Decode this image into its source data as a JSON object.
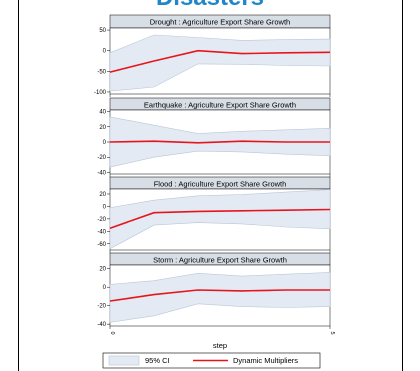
{
  "page": {
    "title": "Disasters",
    "title_color": "#1f86c8",
    "border_color": "#000000"
  },
  "chart_data": {
    "type": "area",
    "xlabel": "step",
    "x": [
      0,
      1,
      2,
      3,
      4,
      5
    ],
    "x_ticks": [
      "0",
      "5"
    ],
    "ci_fill_color": "#e4eaf3",
    "line_color": "#e8141c",
    "legend": {
      "position": "bottom",
      "entries": [
        {
          "label": "95% CI",
          "kind": "area"
        },
        {
          "label": "Dynamic Multipliers",
          "kind": "line"
        }
      ]
    },
    "panels": [
      {
        "title": "Drought : Agriculture Export Share Growth",
        "ylim": [
          -105,
          55
        ],
        "yticks": [
          50,
          0,
          -50,
          -100
        ],
        "ytick_labels": [
          "50",
          "0",
          "-50",
          "-100"
        ],
        "series": [
          {
            "name": "Dynamic Multipliers",
            "values": [
              -52,
              -25,
              0,
              -7,
              -5,
              -4
            ]
          }
        ],
        "ci_upper": [
          -5,
          38,
          32,
          25,
          27,
          28
        ],
        "ci_lower": [
          -98,
          -88,
          -32,
          -33,
          -36,
          -37
        ]
      },
      {
        "title": "Earthquake :  Agriculture Export Share Growth",
        "ylim": [
          -42,
          42
        ],
        "yticks": [
          40,
          20,
          0,
          -20,
          -40
        ],
        "ytick_labels": [
          "40",
          "20",
          "0",
          "-20",
          "-40"
        ],
        "series": [
          {
            "name": "Dynamic Multipliers",
            "values": [
              0,
              1,
              -1,
              1,
              0,
              0
            ]
          }
        ],
        "ci_upper": [
          33,
          22,
          11,
          14,
          16,
          18
        ],
        "ci_lower": [
          -33,
          -20,
          -12,
          -13,
          -16,
          -18
        ]
      },
      {
        "title": "Flood :  Agriculture Export Share Growth",
        "ylim": [
          -70,
          28
        ],
        "yticks": [
          20,
          0,
          -20,
          -40,
          -60
        ],
        "ytick_labels": [
          "20",
          "0",
          "-20",
          "-40",
          "-60"
        ],
        "series": [
          {
            "name": "Dynamic Multipliers",
            "values": [
              -35,
              -10,
              -8,
              -7,
              -6,
              -5
            ]
          }
        ],
        "ci_upper": [
          -2,
          10,
          17,
          19,
          23,
          27
        ],
        "ci_lower": [
          -68,
          -30,
          -26,
          -28,
          -33,
          -36
        ]
      },
      {
        "title": "Storm :  Agriculture Export Share Growth",
        "ylim": [
          -42,
          24
        ],
        "yticks": [
          20,
          0,
          -20,
          -40
        ],
        "ytick_labels": [
          "20",
          "0",
          "-20",
          "-40"
        ],
        "series": [
          {
            "name": "Dynamic Multipliers",
            "values": [
              -15,
              -8,
              -3,
              -4,
              -3,
              -3
            ]
          }
        ],
        "ci_upper": [
          3,
          7,
          15,
          12,
          14,
          16
        ],
        "ci_lower": [
          -38,
          -31,
          -18,
          -21,
          -22,
          -21
        ]
      }
    ]
  }
}
